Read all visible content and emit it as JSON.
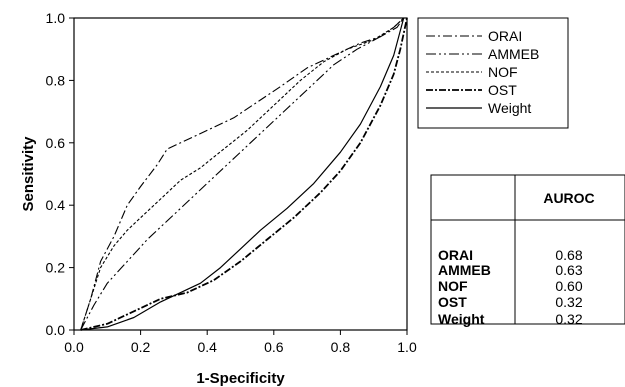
{
  "chart_data": {
    "type": "line",
    "xlabel": "1-Specificity",
    "ylabel": "Sensitivity",
    "xlim": [
      0,
      1
    ],
    "ylim": [
      0,
      1
    ],
    "x_ticks": [
      "0.0",
      "0.2",
      "0.4",
      "0.6",
      "0.8",
      "1.0"
    ],
    "y_ticks": [
      "0.0",
      "0.2",
      "0.4",
      "0.6",
      "0.8",
      "1.0"
    ],
    "grid": false,
    "legend_position": "top-right, outside plot",
    "series": [
      {
        "name": "ORAI",
        "dash": "dash-dot",
        "points": [
          [
            0.02,
            0
          ],
          [
            0.05,
            0.1
          ],
          [
            0.08,
            0.22
          ],
          [
            0.12,
            0.3
          ],
          [
            0.16,
            0.4
          ],
          [
            0.2,
            0.46
          ],
          [
            0.25,
            0.53
          ],
          [
            0.28,
            0.58
          ],
          [
            0.32,
            0.6
          ],
          [
            0.36,
            0.62
          ],
          [
            0.42,
            0.65
          ],
          [
            0.48,
            0.68
          ],
          [
            0.55,
            0.73
          ],
          [
            0.62,
            0.78
          ],
          [
            0.7,
            0.84
          ],
          [
            0.78,
            0.88
          ],
          [
            0.86,
            0.92
          ],
          [
            0.92,
            0.94
          ],
          [
            0.97,
            0.97
          ],
          [
            0.99,
            1.0
          ]
        ]
      },
      {
        "name": "AMMEB",
        "dash": "dash-dot-dot",
        "points": [
          [
            0.02,
            0
          ],
          [
            0.06,
            0.08
          ],
          [
            0.1,
            0.15
          ],
          [
            0.16,
            0.22
          ],
          [
            0.22,
            0.29
          ],
          [
            0.3,
            0.37
          ],
          [
            0.38,
            0.45
          ],
          [
            0.46,
            0.53
          ],
          [
            0.54,
            0.61
          ],
          [
            0.62,
            0.69
          ],
          [
            0.7,
            0.77
          ],
          [
            0.78,
            0.85
          ],
          [
            0.85,
            0.9
          ],
          [
            0.92,
            0.94
          ],
          [
            0.96,
            0.97
          ],
          [
            0.99,
            1.0
          ]
        ]
      },
      {
        "name": "NOF",
        "dash": "dashed",
        "points": [
          [
            0.02,
            0
          ],
          [
            0.05,
            0.1
          ],
          [
            0.08,
            0.2
          ],
          [
            0.12,
            0.27
          ],
          [
            0.16,
            0.32
          ],
          [
            0.2,
            0.36
          ],
          [
            0.26,
            0.42
          ],
          [
            0.32,
            0.48
          ],
          [
            0.38,
            0.52
          ],
          [
            0.45,
            0.58
          ],
          [
            0.52,
            0.64
          ],
          [
            0.6,
            0.72
          ],
          [
            0.68,
            0.8
          ],
          [
            0.75,
            0.86
          ],
          [
            0.82,
            0.9
          ],
          [
            0.9,
            0.93
          ],
          [
            0.96,
            0.97
          ],
          [
            0.99,
            1.0
          ]
        ]
      },
      {
        "name": "OST",
        "dash": "dash-dot bold",
        "points": [
          [
            0.02,
            0
          ],
          [
            0.1,
            0.02
          ],
          [
            0.18,
            0.06
          ],
          [
            0.26,
            0.1
          ],
          [
            0.34,
            0.12
          ],
          [
            0.42,
            0.16
          ],
          [
            0.5,
            0.22
          ],
          [
            0.58,
            0.29
          ],
          [
            0.66,
            0.36
          ],
          [
            0.74,
            0.44
          ],
          [
            0.8,
            0.51
          ],
          [
            0.86,
            0.6
          ],
          [
            0.92,
            0.72
          ],
          [
            0.96,
            0.82
          ],
          [
            0.98,
            0.9
          ],
          [
            1.0,
            1.0
          ]
        ]
      },
      {
        "name": "Weight",
        "dash": "solid",
        "points": [
          [
            0.02,
            0
          ],
          [
            0.1,
            0.01
          ],
          [
            0.18,
            0.04
          ],
          [
            0.26,
            0.09
          ],
          [
            0.32,
            0.12
          ],
          [
            0.38,
            0.15
          ],
          [
            0.44,
            0.2
          ],
          [
            0.5,
            0.26
          ],
          [
            0.56,
            0.32
          ],
          [
            0.64,
            0.39
          ],
          [
            0.72,
            0.47
          ],
          [
            0.8,
            0.57
          ],
          [
            0.86,
            0.66
          ],
          [
            0.92,
            0.78
          ],
          [
            0.96,
            0.88
          ],
          [
            0.99,
            1.0
          ]
        ]
      }
    ],
    "table": {
      "header": "AUROC",
      "rows": [
        {
          "name": "ORAI",
          "value": "0.68"
        },
        {
          "name": "AMMEB",
          "value": "0.63"
        },
        {
          "name": "NOF",
          "value": "0.60"
        },
        {
          "name": "OST",
          "value": "0.32"
        },
        {
          "name": "Weight",
          "value": "0.32"
        }
      ]
    }
  }
}
